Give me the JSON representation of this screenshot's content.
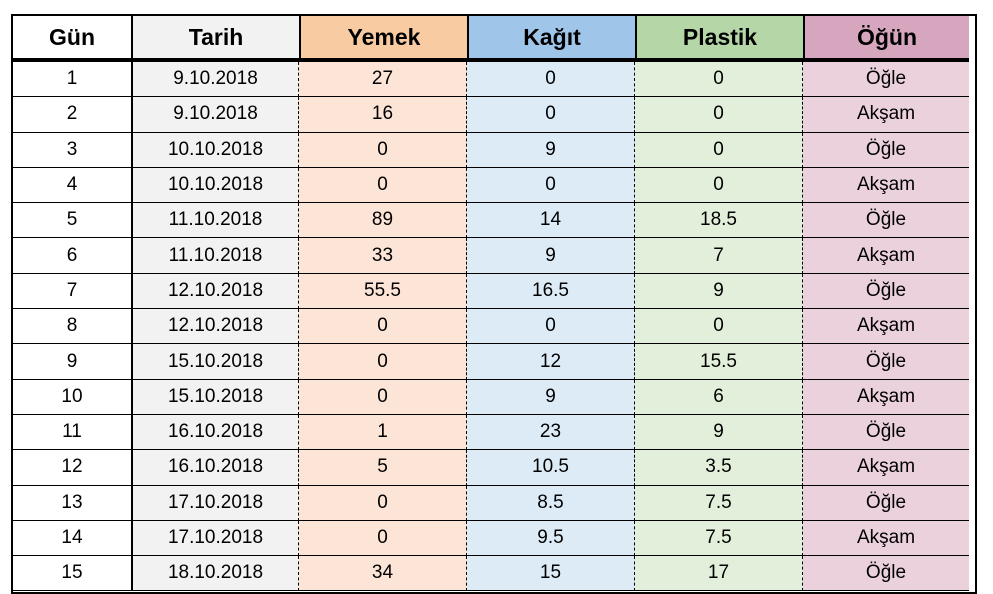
{
  "headers": [
    "Gün",
    "Tarih",
    "Yemek",
    "Kağıt",
    "Plastik",
    "Öğün"
  ],
  "rows": [
    [
      "1",
      "9.10.2018",
      "27",
      "0",
      "0",
      "Öğle"
    ],
    [
      "2",
      "9.10.2018",
      "16",
      "0",
      "0",
      "Akşam"
    ],
    [
      "3",
      "10.10.2018",
      "0",
      "9",
      "0",
      "Öğle"
    ],
    [
      "4",
      "10.10.2018",
      "0",
      "0",
      "0",
      "Akşam"
    ],
    [
      "5",
      "11.10.2018",
      "89",
      "14",
      "18.5",
      "Öğle"
    ],
    [
      "6",
      "11.10.2018",
      "33",
      "9",
      "7",
      "Akşam"
    ],
    [
      "7",
      "12.10.2018",
      "55.5",
      "16.5",
      "9",
      "Öğle"
    ],
    [
      "8",
      "12.10.2018",
      "0",
      "0",
      "0",
      "Akşam"
    ],
    [
      "9",
      "15.10.2018",
      "0",
      "12",
      "15.5",
      "Öğle"
    ],
    [
      "10",
      "15.10.2018",
      "0",
      "9",
      "6",
      "Akşam"
    ],
    [
      "11",
      "16.10.2018",
      "1",
      "23",
      "9",
      "Öğle"
    ],
    [
      "12",
      "16.10.2018",
      "5",
      "10.5",
      "3.5",
      "Akşam"
    ],
    [
      "13",
      "17.10.2018",
      "0",
      "8.5",
      "7.5",
      "Öğle"
    ],
    [
      "14",
      "17.10.2018",
      "0",
      "9.5",
      "7.5",
      "Akşam"
    ],
    [
      "15",
      "18.10.2018",
      "34",
      "15",
      "17",
      "Öğle"
    ]
  ],
  "colors": {
    "tarih_header": "#f2f2f2",
    "yemek_header": "#f8cba3",
    "kagit_header": "#9fc5e8",
    "plastik_header": "#b5d7a8",
    "ogun_header": "#d5a6bd",
    "yemek_cell": "#fce4d6",
    "kagit_cell": "#ddebf7",
    "plastik_cell": "#e2efda",
    "ogun_cell": "#ead1dc"
  }
}
